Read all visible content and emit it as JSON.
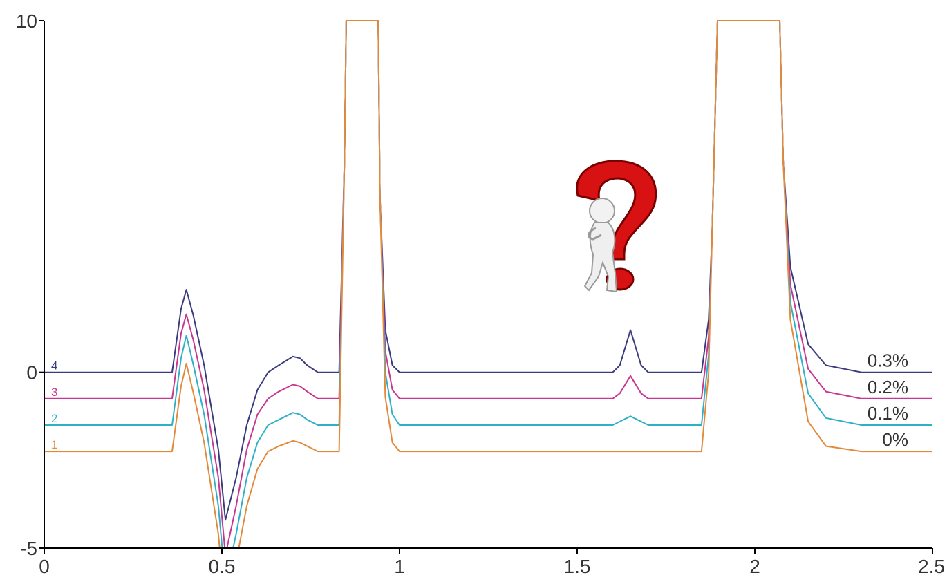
{
  "chart_data": {
    "type": "line",
    "title": "",
    "xlabel": "",
    "ylabel": "",
    "xlim": [
      0,
      2.5
    ],
    "ylim": [
      -5,
      10
    ],
    "x_ticks": [
      {
        "value": 0,
        "label": "0"
      },
      {
        "value": 0.5,
        "label": "0.5"
      },
      {
        "value": 1,
        "label": "1"
      },
      {
        "value": 1.5,
        "label": "1.5"
      },
      {
        "value": 2,
        "label": "2"
      },
      {
        "value": 2.5,
        "label": "2.5"
      }
    ],
    "y_ticks": [
      {
        "value": 10,
        "label": "10"
      },
      {
        "value": 0,
        "label": "0"
      },
      {
        "value": -5,
        "label": "-5"
      }
    ],
    "grid": false,
    "series": [
      {
        "name": "4",
        "end_label": "0.3%",
        "color": "#3a3a7e",
        "baseline": 0.0,
        "x": [
          0,
          0.36,
          0.385,
          0.4,
          0.42,
          0.45,
          0.49,
          0.51,
          0.54,
          0.57,
          0.6,
          0.63,
          0.66,
          0.7,
          0.72,
          0.74,
          0.77,
          0.83,
          0.835,
          0.845,
          0.85,
          0.94,
          0.945,
          0.96,
          0.98,
          1.0,
          1.2,
          1.4,
          1.6,
          1.62,
          1.65,
          1.68,
          1.7,
          1.85,
          1.87,
          1.88,
          1.895,
          2.07,
          2.08,
          2.1,
          2.15,
          2.2,
          2.3,
          2.5
        ],
        "y": [
          0.0,
          0.0,
          1.8,
          2.35,
          1.6,
          0.2,
          -2.2,
          -4.2,
          -3.0,
          -1.5,
          -0.5,
          0.0,
          0.2,
          0.45,
          0.4,
          0.2,
          0.0,
          0.0,
          2.0,
          6.0,
          10.0,
          10.0,
          5.0,
          1.2,
          0.2,
          0.0,
          0.0,
          0.0,
          0.0,
          0.2,
          1.2,
          0.2,
          0.0,
          0.0,
          1.5,
          4.0,
          10.0,
          10.0,
          6.0,
          3.0,
          0.8,
          0.2,
          0.0,
          0.0
        ]
      },
      {
        "name": "3",
        "end_label": "0.2%",
        "color": "#c8378f",
        "baseline": -0.75,
        "x": [
          0,
          0.36,
          0.385,
          0.4,
          0.42,
          0.45,
          0.49,
          0.51,
          0.54,
          0.57,
          0.6,
          0.63,
          0.66,
          0.7,
          0.72,
          0.74,
          0.77,
          0.83,
          0.835,
          0.845,
          0.85,
          0.94,
          0.945,
          0.96,
          0.98,
          1.0,
          1.2,
          1.4,
          1.6,
          1.62,
          1.65,
          1.68,
          1.7,
          1.85,
          1.87,
          1.88,
          1.895,
          2.07,
          2.08,
          2.1,
          2.15,
          2.2,
          2.3,
          2.5
        ],
        "y": [
          -0.75,
          -0.75,
          1.1,
          1.65,
          0.9,
          -0.5,
          -3.0,
          -5.2,
          -3.8,
          -2.2,
          -1.2,
          -0.75,
          -0.55,
          -0.35,
          -0.4,
          -0.55,
          -0.75,
          -0.75,
          1.5,
          6.0,
          10.0,
          10.0,
          5.0,
          0.6,
          -0.5,
          -0.75,
          -0.75,
          -0.75,
          -0.75,
          -0.6,
          -0.1,
          -0.6,
          -0.75,
          -0.75,
          1.0,
          4.0,
          10.0,
          10.0,
          6.0,
          2.5,
          0.1,
          -0.55,
          -0.75,
          -0.75
        ]
      },
      {
        "name": "2",
        "end_label": "0.1%",
        "color": "#2fb0c8",
        "baseline": -1.5,
        "x": [
          0,
          0.36,
          0.385,
          0.4,
          0.42,
          0.45,
          0.49,
          0.51,
          0.54,
          0.57,
          0.6,
          0.63,
          0.66,
          0.7,
          0.72,
          0.74,
          0.77,
          0.83,
          0.835,
          0.845,
          0.85,
          0.94,
          0.945,
          0.96,
          0.98,
          1.0,
          1.2,
          1.4,
          1.6,
          1.62,
          1.65,
          1.68,
          1.7,
          1.85,
          1.87,
          1.88,
          1.895,
          2.07,
          2.08,
          2.1,
          2.15,
          2.2,
          2.3,
          2.5
        ],
        "y": [
          -1.5,
          -1.5,
          0.4,
          1.05,
          0.2,
          -1.2,
          -3.8,
          -6.0,
          -4.6,
          -3.0,
          -2.0,
          -1.5,
          -1.35,
          -1.15,
          -1.2,
          -1.35,
          -1.5,
          -1.5,
          1.0,
          6.0,
          10.0,
          10.0,
          5.0,
          0.0,
          -1.2,
          -1.5,
          -1.5,
          -1.5,
          -1.5,
          -1.4,
          -1.25,
          -1.4,
          -1.5,
          -1.5,
          0.5,
          4.0,
          10.0,
          10.0,
          6.0,
          2.0,
          -0.6,
          -1.3,
          -1.5,
          -1.5
        ]
      },
      {
        "name": "1",
        "end_label": "0%",
        "color": "#e3893a",
        "baseline": -2.25,
        "x": [
          0,
          0.36,
          0.385,
          0.4,
          0.42,
          0.45,
          0.49,
          0.51,
          0.54,
          0.57,
          0.6,
          0.63,
          0.66,
          0.7,
          0.72,
          0.74,
          0.77,
          0.83,
          0.835,
          0.845,
          0.85,
          0.94,
          0.945,
          0.96,
          0.98,
          1.0,
          1.2,
          1.4,
          1.6,
          1.62,
          1.65,
          1.68,
          1.7,
          1.85,
          1.87,
          1.88,
          1.895,
          2.07,
          2.08,
          2.1,
          2.15,
          2.2,
          2.3,
          2.5
        ],
        "y": [
          -2.25,
          -2.25,
          -0.4,
          0.25,
          -0.6,
          -2.0,
          -4.6,
          -6.8,
          -5.4,
          -3.8,
          -2.75,
          -2.25,
          -2.1,
          -1.95,
          -2.0,
          -2.1,
          -2.25,
          -2.25,
          0.5,
          6.0,
          10.0,
          10.0,
          5.0,
          -0.7,
          -2.0,
          -2.25,
          -2.25,
          -2.25,
          -2.25,
          -2.25,
          -2.25,
          -2.25,
          -2.25,
          -2.25,
          0.0,
          4.0,
          10.0,
          10.0,
          6.0,
          1.5,
          -1.4,
          -2.1,
          -2.25,
          -2.25
        ]
      }
    ],
    "annotations": [
      {
        "type": "image",
        "icon": "thinking-figure-question-mark-icon",
        "x": 1.62,
        "y": 5.5
      }
    ]
  }
}
